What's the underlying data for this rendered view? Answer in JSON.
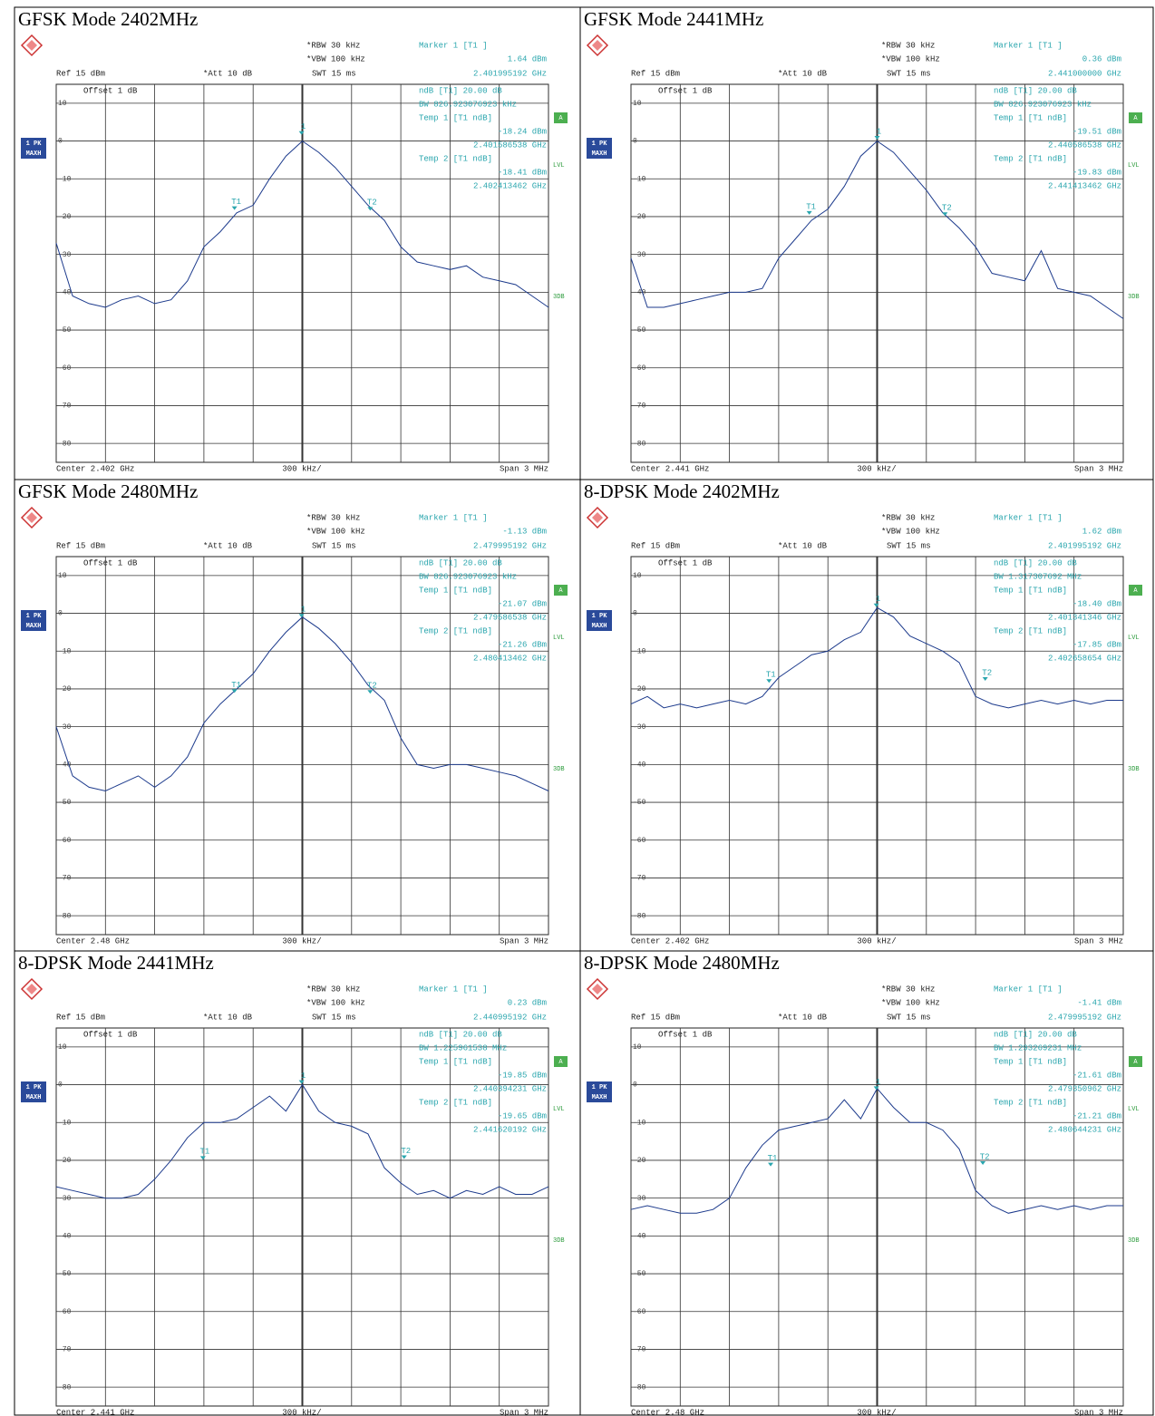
{
  "chart_data": [
    {
      "type": "line",
      "title": "GFSK Mode 2402MHz",
      "color": "#1c3a8c",
      "rbw": "*RBW 30 kHz",
      "vbw": "*VBW 100 kHz",
      "swt": "SWT 15 ms",
      "ref": "Ref 15 dBm",
      "att": "*Att 10 dB",
      "offset": "Offset 1 dB",
      "marker_header": "Marker 1 [T1 ]",
      "ndb": "ndB [T1] 20.00 dB",
      "bw": "BW 826.923076923 kHz",
      "temp1": "Temp 1 [T1 ndB]",
      "temp2": "Temp 2 [T1 ndB]",
      "trace_label": [
        "1 PK",
        "MAXH"
      ],
      "side_labels": [
        "A",
        "LVL",
        "3DB"
      ],
      "center": "Center 2.402 GHz",
      "division": "300 kHz/",
      "span": "Span 3 MHz",
      "xlim": [
        2400.5,
        2403.5
      ],
      "xticks": [
        2400.5,
        2400.8,
        2401.1,
        2401.4,
        2401.7,
        2402,
        2402.3,
        2402.6,
        2402.9,
        2403.2,
        2403.5
      ],
      "ylim": [
        -85,
        15
      ],
      "yticks": [
        10,
        0,
        -10,
        -20,
        -30,
        -40,
        -50,
        -60,
        -70,
        -80
      ],
      "x": [
        2400.5,
        2400.6,
        2400.7,
        2400.8,
        2400.9,
        2401,
        2401.1,
        2401.2,
        2401.3,
        2401.4,
        2401.5,
        2401.6,
        2401.7,
        2401.8,
        2401.9,
        2402,
        2402.1,
        2402.2,
        2402.3,
        2402.4,
        2402.5,
        2402.6,
        2402.7,
        2402.8,
        2402.9,
        2403,
        2403.1,
        2403.2,
        2403.3,
        2403.4,
        2403.5
      ],
      "values": [
        -27,
        -41,
        -43,
        -44,
        -42,
        -41,
        -43,
        -42,
        -37,
        -28,
        -24,
        -19,
        -17,
        -10,
        -4,
        0,
        -3,
        -7,
        -12,
        -17,
        -21,
        -28,
        -32,
        -33,
        -34,
        -33,
        -36,
        -37,
        -38,
        -41,
        -44
      ],
      "markers": [
        {
          "name": "1",
          "x": 2401.995192,
          "y": 1.64,
          "x_label": "2.401995192 GHz",
          "y_label": "1.64 dBm"
        },
        {
          "name": "T1",
          "x": 2401.586538,
          "y": -18.24,
          "x_label": "2.401586538 GHz",
          "y_label": "-18.24 dBm"
        },
        {
          "name": "T2",
          "x": 2402.413462,
          "y": -18.41,
          "x_label": "2.402413462 GHz",
          "y_label": "-18.41 dBm"
        }
      ]
    },
    {
      "type": "line",
      "title": "GFSK Mode 2441MHz",
      "color": "#1c3a8c",
      "rbw": "*RBW 30 kHz",
      "vbw": "*VBW 100 kHz",
      "swt": "SWT 15 ms",
      "ref": "Ref 15 dBm",
      "att": "*Att 10 dB",
      "offset": "Offset 1 dB",
      "marker_header": "Marker 1 [T1 ]",
      "ndb": "ndB [T1] 20.00 dB",
      "bw": "BW 826.923076923 kHz",
      "temp1": "Temp 1 [T1 ndB]",
      "temp2": "Temp 2 [T1 ndB]",
      "trace_label": [
        "1 PK",
        "MAXH"
      ],
      "side_labels": [
        "A",
        "LVL",
        "3DB"
      ],
      "center": "Center 2.441 GHz",
      "division": "300 kHz/",
      "span": "Span 3 MHz",
      "xlim": [
        2439.5,
        2442.5
      ],
      "xticks": [
        2439.5,
        2439.8,
        2440.1,
        2440.4,
        2440.7,
        2441,
        2441.3,
        2441.6,
        2441.9,
        2442.2,
        2442.5
      ],
      "ylim": [
        -85,
        15
      ],
      "yticks": [
        10,
        0,
        -10,
        -20,
        -30,
        -40,
        -50,
        -60,
        -70,
        -80
      ],
      "x": [
        2439.5,
        2439.6,
        2439.7,
        2439.8,
        2439.9,
        2440,
        2440.1,
        2440.2,
        2440.3,
        2440.4,
        2440.5,
        2440.6,
        2440.7,
        2440.8,
        2440.9,
        2441,
        2441.1,
        2441.2,
        2441.3,
        2441.4,
        2441.5,
        2441.6,
        2441.7,
        2441.8,
        2441.9,
        2442,
        2442.1,
        2442.2,
        2442.3,
        2442.4,
        2442.5
      ],
      "values": [
        -31,
        -44,
        -44,
        -43,
        -42,
        -41,
        -40,
        -40,
        -39,
        -31,
        -26,
        -21,
        -18,
        -12,
        -4,
        0,
        -3,
        -8,
        -13,
        -19,
        -23,
        -28,
        -35,
        -36,
        -37,
        -29,
        -39,
        -40,
        -41,
        -44,
        -47
      ],
      "markers": [
        {
          "name": "1",
          "x": 2441,
          "y": 0.36,
          "x_label": "2.441000000 GHz",
          "y_label": "0.36 dBm"
        },
        {
          "name": "T1",
          "x": 2440.586538,
          "y": -19.51,
          "x_label": "2.440586538 GHz",
          "y_label": "-19.51 dBm"
        },
        {
          "name": "T2",
          "x": 2441.413462,
          "y": -19.83,
          "x_label": "2.441413462 GHz",
          "y_label": "-19.83 dBm"
        }
      ]
    },
    {
      "type": "line",
      "title": "GFSK Mode 2480MHz",
      "color": "#1c3a8c",
      "rbw": "*RBW 30 kHz",
      "vbw": "*VBW 100 kHz",
      "swt": "SWT 15 ms",
      "ref": "Ref 15 dBm",
      "att": "*Att 10 dB",
      "offset": "Offset 1 dB",
      "marker_header": "Marker 1 [T1 ]",
      "ndb": "ndB [T1] 20.00 dB",
      "bw": "BW 826.923076923 kHz",
      "temp1": "Temp 1 [T1 ndB]",
      "temp2": "Temp 2 [T1 ndB]",
      "trace_label": [
        "1 PK",
        "MAXH"
      ],
      "side_labels": [
        "A",
        "LVL",
        "3DB"
      ],
      "center": "Center 2.48 GHz",
      "division": "300 kHz/",
      "span": "Span 3 MHz",
      "xlim": [
        2478.5,
        2481.5
      ],
      "xticks": [
        2478.5,
        2478.8,
        2479.1,
        2479.4,
        2479.7,
        2480,
        2480.3,
        2480.6,
        2480.9,
        2481.2,
        2481.5
      ],
      "ylim": [
        -85,
        15
      ],
      "yticks": [
        10,
        0,
        -10,
        -20,
        -30,
        -40,
        -50,
        -60,
        -70,
        -80
      ],
      "x": [
        2478.5,
        2478.6,
        2478.7,
        2478.8,
        2478.9,
        2479,
        2479.1,
        2479.2,
        2479.3,
        2479.4,
        2479.5,
        2479.6,
        2479.7,
        2479.8,
        2479.9,
        2480,
        2480.1,
        2480.2,
        2480.3,
        2480.4,
        2480.5,
        2480.6,
        2480.7,
        2480.8,
        2480.9,
        2481,
        2481.1,
        2481.2,
        2481.3,
        2481.4,
        2481.5
      ],
      "values": [
        -30,
        -43,
        -46,
        -47,
        -45,
        -43,
        -46,
        -43,
        -38,
        -29,
        -24,
        -20,
        -16,
        -10,
        -5,
        -1,
        -4,
        -8,
        -13,
        -19,
        -23,
        -33,
        -40,
        -41,
        -40,
        -40,
        -41,
        -42,
        -43,
        -45,
        -47
      ],
      "markers": [
        {
          "name": "1",
          "x": 2479.995192,
          "y": -1.13,
          "x_label": "2.479995192 GHz",
          "y_label": "-1.13 dBm"
        },
        {
          "name": "T1",
          "x": 2479.586538,
          "y": -21.07,
          "x_label": "2.479586538 GHz",
          "y_label": "-21.07 dBm"
        },
        {
          "name": "T2",
          "x": 2480.413462,
          "y": -21.26,
          "x_label": "2.480413462 GHz",
          "y_label": "-21.26 dBm"
        }
      ]
    },
    {
      "type": "line",
      "title": "8-DPSK Mode 2402MHz",
      "color": "#1c3a8c",
      "rbw": "*RBW 30 kHz",
      "vbw": "*VBW 100 kHz",
      "swt": "SWT 15 ms",
      "ref": "Ref 15 dBm",
      "att": "*Att 10 dB",
      "offset": "Offset 1 dB",
      "marker_header": "Marker 1 [T1 ]",
      "ndb": "ndB [T1] 20.00 dB",
      "bw": "BW 1.317307692 MHz",
      "temp1": "Temp 1 [T1 ndB]",
      "temp2": "Temp 2 [T1 ndB]",
      "trace_label": [
        "1 PK",
        "MAXH"
      ],
      "side_labels": [
        "A",
        "LVL",
        "3DB"
      ],
      "center": "Center 2.402 GHz",
      "division": "300 kHz/",
      "span": "Span 3 MHz",
      "xlim": [
        2400.5,
        2403.5
      ],
      "xticks": [
        2400.5,
        2400.8,
        2401.1,
        2401.4,
        2401.7,
        2402,
        2402.3,
        2402.6,
        2402.9,
        2403.2,
        2403.5
      ],
      "ylim": [
        -85,
        15
      ],
      "yticks": [
        10,
        0,
        -10,
        -20,
        -30,
        -40,
        -50,
        -60,
        -70,
        -80
      ],
      "x": [
        2400.5,
        2400.6,
        2400.7,
        2400.8,
        2400.9,
        2401,
        2401.1,
        2401.2,
        2401.3,
        2401.4,
        2401.5,
        2401.6,
        2401.7,
        2401.8,
        2401.9,
        2402,
        2402.1,
        2402.2,
        2402.3,
        2402.4,
        2402.5,
        2402.6,
        2402.7,
        2402.8,
        2402.9,
        2403,
        2403.1,
        2403.2,
        2403.3,
        2403.4,
        2403.5
      ],
      "values": [
        -24,
        -22,
        -25,
        -24,
        -25,
        -24,
        -23,
        -24,
        -22,
        -17,
        -14,
        -11,
        -10,
        -7,
        -5,
        1.5,
        -1,
        -6,
        -8,
        -10,
        -13,
        -22,
        -24,
        -25,
        -24,
        -23,
        -24,
        -23,
        -24,
        -23,
        -23
      ],
      "markers": [
        {
          "name": "1",
          "x": 2401.995192,
          "y": 1.62,
          "x_label": "2.401995192 GHz",
          "y_label": "1.62 dBm"
        },
        {
          "name": "T1",
          "x": 2401.341346,
          "y": -18.4,
          "x_label": "2.401341346 GHz",
          "y_label": "-18.40 dBm"
        },
        {
          "name": "T2",
          "x": 2402.658654,
          "y": -17.85,
          "x_label": "2.402658654 GHz",
          "y_label": "-17.85 dBm"
        }
      ]
    },
    {
      "type": "line",
      "title": "8-DPSK Mode 2441MHz",
      "color": "#1c3a8c",
      "rbw": "*RBW 30 kHz",
      "vbw": "*VBW 100 kHz",
      "swt": "SWT 15 ms",
      "ref": "Ref 15 dBm",
      "att": "*Att 10 dB",
      "offset": "Offset 1 dB",
      "marker_header": "Marker 1 [T1 ]",
      "ndb": "ndB [T1] 20.00 dB",
      "bw": "BW 1.225961538 MHz",
      "temp1": "Temp 1 [T1 ndB]",
      "temp2": "Temp 2 [T1 ndB]",
      "trace_label": [
        "1 PK",
        "MAXH"
      ],
      "side_labels": [
        "A",
        "LVL",
        "3DB"
      ],
      "center": "Center 2.441 GHz",
      "division": "300 kHz/",
      "span": "Span 3 MHz",
      "xlim": [
        2439.5,
        2442.5
      ],
      "xticks": [
        2439.5,
        2439.8,
        2440.1,
        2440.4,
        2440.7,
        2441,
        2441.3,
        2441.6,
        2441.9,
        2442.2,
        2442.5
      ],
      "ylim": [
        -85,
        15
      ],
      "yticks": [
        10,
        0,
        -10,
        -20,
        -30,
        -40,
        -50,
        -60,
        -70,
        -80
      ],
      "x": [
        2439.5,
        2439.6,
        2439.7,
        2439.8,
        2439.9,
        2440,
        2440.1,
        2440.2,
        2440.3,
        2440.4,
        2440.5,
        2440.6,
        2440.7,
        2440.8,
        2440.9,
        2441,
        2441.1,
        2441.2,
        2441.3,
        2441.4,
        2441.5,
        2441.6,
        2441.7,
        2441.8,
        2441.9,
        2442,
        2442.1,
        2442.2,
        2442.3,
        2442.4,
        2442.5
      ],
      "values": [
        -27,
        -28,
        -29,
        -30,
        -30,
        -29,
        -25,
        -20,
        -14,
        -10,
        -10,
        -9,
        -6,
        -3,
        -7,
        0,
        -7,
        -10,
        -11,
        -13,
        -22,
        -26,
        -29,
        -28,
        -30,
        -28,
        -29,
        -27,
        -29,
        -29,
        -27
      ],
      "markers": [
        {
          "name": "1",
          "x": 2440.995192,
          "y": 0.23,
          "x_label": "2.440995192 GHz",
          "y_label": "0.23 dBm"
        },
        {
          "name": "T1",
          "x": 2440.394231,
          "y": -19.85,
          "x_label": "2.440394231 GHz",
          "y_label": "-19.85 dBm"
        },
        {
          "name": "T2",
          "x": 2441.620192,
          "y": -19.65,
          "x_label": "2.441620192 GHz",
          "y_label": "-19.65 dBm"
        }
      ]
    },
    {
      "type": "line",
      "title": "8-DPSK Mode 2480MHz",
      "color": "#1c3a8c",
      "rbw": "*RBW 30 kHz",
      "vbw": "*VBW 100 kHz",
      "swt": "SWT 15 ms",
      "ref": "Ref 15 dBm",
      "att": "*Att 10 dB",
      "offset": "Offset 1 dB",
      "marker_header": "Marker 1 [T1 ]",
      "ndb": "ndB [T1] 20.00 dB",
      "bw": "BW 1.293269231 MHz",
      "temp1": "Temp 1 [T1 ndB]",
      "temp2": "Temp 2 [T1 ndB]",
      "trace_label": [
        "1 PK",
        "MAXH"
      ],
      "side_labels": [
        "A",
        "LVL",
        "3DB"
      ],
      "center": "Center 2.48 GHz",
      "division": "300 kHz/",
      "span": "Span 3 MHz",
      "xlim": [
        2478.5,
        2481.5
      ],
      "xticks": [
        2478.5,
        2478.8,
        2479.1,
        2479.4,
        2479.7,
        2480,
        2480.3,
        2480.6,
        2480.9,
        2481.2,
        2481.5
      ],
      "ylim": [
        -85,
        15
      ],
      "yticks": [
        10,
        0,
        -10,
        -20,
        -30,
        -40,
        -50,
        -60,
        -70,
        -80
      ],
      "x": [
        2478.5,
        2478.6,
        2478.7,
        2478.8,
        2478.9,
        2479,
        2479.1,
        2479.2,
        2479.3,
        2479.4,
        2479.5,
        2479.6,
        2479.7,
        2479.8,
        2479.9,
        2480,
        2480.1,
        2480.2,
        2480.3,
        2480.4,
        2480.5,
        2480.6,
        2480.7,
        2480.8,
        2480.9,
        2481,
        2481.1,
        2481.2,
        2481.3,
        2481.4,
        2481.5
      ],
      "values": [
        -33,
        -32,
        -33,
        -34,
        -34,
        -33,
        -30,
        -22,
        -16,
        -12,
        -11,
        -10,
        -9,
        -4,
        -9,
        -1,
        -6,
        -10,
        -10,
        -12,
        -17,
        -28,
        -32,
        -34,
        -33,
        -32,
        -33,
        -32,
        -33,
        -32,
        -32
      ],
      "markers": [
        {
          "name": "1",
          "x": 2479.995192,
          "y": -1.41,
          "x_label": "2.479995192 GHz",
          "y_label": "-1.41 dBm"
        },
        {
          "name": "T1",
          "x": 2479.350962,
          "y": -21.61,
          "x_label": "2.479350962 GHz",
          "y_label": "-21.61 dBm"
        },
        {
          "name": "T2",
          "x": 2480.644231,
          "y": -21.21,
          "x_label": "2.480644231 GHz",
          "y_label": "-21.21 dBm"
        }
      ]
    }
  ]
}
